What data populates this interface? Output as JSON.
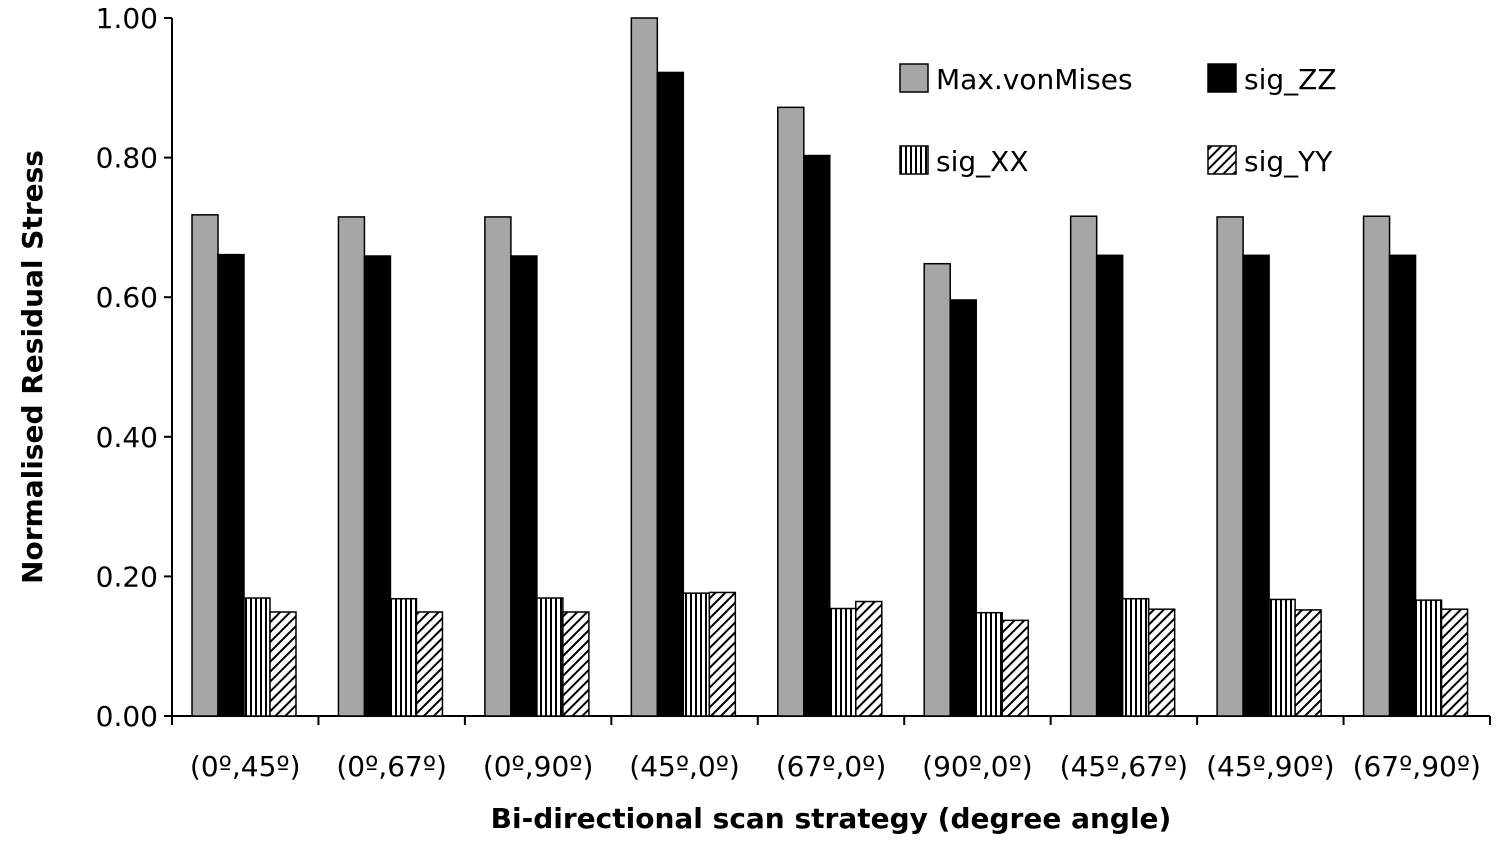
{
  "chart_data": {
    "type": "bar",
    "title": "",
    "xlabel": "Bi-directional scan strategy (degree angle)",
    "ylabel": "Normalised Residual Stress",
    "ylim": [
      0,
      1.0
    ],
    "yticks": [
      "0.00",
      "0.20",
      "0.40",
      "0.60",
      "0.80",
      "1.00"
    ],
    "categories": [
      "(0º,45º)",
      "(0º,67º)",
      "(0º,90º)",
      "(45º,0º)",
      "(67º,0º)",
      "(90º,0º)",
      "(45º,67º)",
      "(45º,90º)",
      "(67º,90º)"
    ],
    "series": [
      {
        "name": "Max.vonMises",
        "pattern": "gray",
        "color": "#a6a6a6",
        "values": [
          0.718,
          0.715,
          0.715,
          1.0,
          0.872,
          0.648,
          0.716,
          0.715,
          0.716
        ]
      },
      {
        "name": "sig_ZZ",
        "pattern": "black",
        "color": "#000000",
        "values": [
          0.661,
          0.659,
          0.659,
          0.922,
          0.803,
          0.596,
          0.66,
          0.66,
          0.66
        ]
      },
      {
        "name": "sig_XX",
        "pattern": "vertical-stripes",
        "color": "#000000",
        "values": [
          0.169,
          0.168,
          0.169,
          0.176,
          0.154,
          0.148,
          0.168,
          0.167,
          0.166
        ]
      },
      {
        "name": "sig_YY",
        "pattern": "diagonal-stripes",
        "color": "#000000",
        "values": [
          0.149,
          0.149,
          0.149,
          0.177,
          0.164,
          0.137,
          0.153,
          0.152,
          0.153
        ]
      }
    ],
    "legend_position": "top-right",
    "grid": false
  }
}
